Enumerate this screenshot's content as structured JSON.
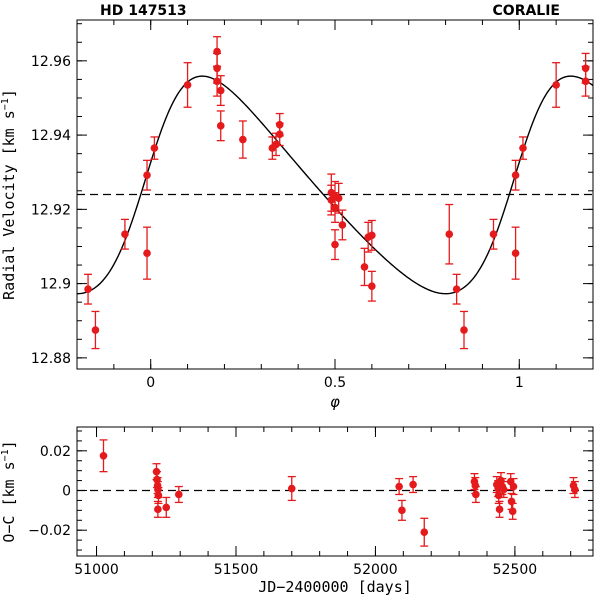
{
  "header": {
    "left": "HD 147513",
    "right": "CORALIE"
  },
  "chart_data": [
    {
      "type": "scatter",
      "xlabel": "φ",
      "ylabel_main": "Radial Velocity ",
      "ylabel_unit": "[km s",
      "ylabel_exp": "−1",
      "ylabel_close": "]",
      "xlim": [
        -0.2,
        1.2
      ],
      "ylim": [
        12.877,
        12.971
      ],
      "xticks": [
        {
          "v": 0,
          "label": "0"
        },
        {
          "v": 0.5,
          "label": "0.5"
        },
        {
          "v": 1,
          "label": "1"
        }
      ],
      "yticks": [
        {
          "v": 12.88,
          "label": "12.88"
        },
        {
          "v": 12.9,
          "label": "12.9"
        },
        {
          "v": 12.92,
          "label": "12.92"
        },
        {
          "v": 12.94,
          "label": "12.94"
        },
        {
          "v": 12.96,
          "label": "12.96"
        }
      ],
      "reference_line": 12.924,
      "model": {
        "gamma": 12.925,
        "K": 0.0293,
        "e": 0.26,
        "omega_deg": 282,
        "T0_phase": 0.0
      },
      "series": [
        {
          "points": [
            {
              "x": -0.17,
              "y": 12.8985,
              "err": 0.004
            },
            {
              "x": -0.15,
              "y": 12.8875,
              "err": 0.005
            },
            {
              "x": -0.07,
              "y": 12.9133,
              "err": 0.004
            },
            {
              "x": -0.01,
              "y": 12.9082,
              "err": 0.007
            },
            {
              "x": -0.01,
              "y": 12.9292,
              "err": 0.004
            },
            {
              "x": 0.01,
              "y": 12.9365,
              "err": 0.003
            },
            {
              "x": 0.1,
              "y": 12.9535,
              "err": 0.006
            },
            {
              "x": 0.18,
              "y": 12.9625,
              "err": 0.004
            },
            {
              "x": 0.18,
              "y": 12.958,
              "err": 0.004
            },
            {
              "x": 0.18,
              "y": 12.9545,
              "err": 0.004
            },
            {
              "x": 0.19,
              "y": 12.952,
              "err": 0.004
            },
            {
              "x": 0.19,
              "y": 12.9425,
              "err": 0.004
            },
            {
              "x": 0.25,
              "y": 12.9388,
              "err": 0.005
            },
            {
              "x": 0.33,
              "y": 12.9365,
              "err": 0.003
            },
            {
              "x": 0.34,
              "y": 12.9375,
              "err": 0.003
            },
            {
              "x": 0.35,
              "y": 12.9428,
              "err": 0.003
            },
            {
              "x": 0.35,
              "y": 12.9402,
              "err": 0.003
            },
            {
              "x": 0.49,
              "y": 12.9245,
              "err": 0.005
            },
            {
              "x": 0.49,
              "y": 12.9225,
              "err": 0.004
            },
            {
              "x": 0.5,
              "y": 12.9235,
              "err": 0.004
            },
            {
              "x": 0.5,
              "y": 12.9205,
              "err": 0.004
            },
            {
              "x": 0.5,
              "y": 12.9105,
              "err": 0.004
            },
            {
              "x": 0.51,
              "y": 12.923,
              "err": 0.004
            },
            {
              "x": 0.52,
              "y": 12.9158,
              "err": 0.004
            },
            {
              "x": 0.58,
              "y": 12.9045,
              "err": 0.005
            },
            {
              "x": 0.59,
              "y": 12.9125,
              "err": 0.004
            },
            {
              "x": 0.6,
              "y": 12.913,
              "err": 0.004
            },
            {
              "x": 0.6,
              "y": 12.8993,
              "err": 0.004
            },
            {
              "x": 0.81,
              "y": 12.9133,
              "err": 0.008
            },
            {
              "x": 0.83,
              "y": 12.8985,
              "err": 0.004
            },
            {
              "x": 0.85,
              "y": 12.8875,
              "err": 0.005
            },
            {
              "x": 0.93,
              "y": 12.9133,
              "err": 0.004
            },
            {
              "x": 0.99,
              "y": 12.9082,
              "err": 0.007
            },
            {
              "x": 0.99,
              "y": 12.9292,
              "err": 0.004
            },
            {
              "x": 1.01,
              "y": 12.9365,
              "err": 0.003
            },
            {
              "x": 1.1,
              "y": 12.9535,
              "err": 0.006
            },
            {
              "x": 1.18,
              "y": 12.958,
              "err": 0.004
            },
            {
              "x": 1.18,
              "y": 12.9545,
              "err": 0.004
            }
          ]
        }
      ]
    },
    {
      "type": "scatter",
      "xlabel": "JD−2400000 [days]",
      "ylabel_main": "O−C ",
      "ylabel_unit": "[km s",
      "ylabel_exp": "−1",
      "ylabel_close": "]",
      "xlim": [
        50930,
        52780
      ],
      "ylim": [
        -0.033,
        0.032
      ],
      "xticks": [
        {
          "v": 51000,
          "label": "51000"
        },
        {
          "v": 51500,
          "label": "51500"
        },
        {
          "v": 52000,
          "label": "52000"
        },
        {
          "v": 52500,
          "label": "52500"
        }
      ],
      "yticks": [
        {
          "v": -0.02,
          "label": "−0.02"
        },
        {
          "v": 0,
          "label": "0"
        },
        {
          "v": 0.02,
          "label": "0.02"
        }
      ],
      "reference_line": 0,
      "series": [
        {
          "points": [
            {
              "x": 51025,
              "y": 0.0175,
              "err": 0.008
            },
            {
              "x": 51215,
              "y": 0.0095,
              "err": 0.004
            },
            {
              "x": 51217,
              "y": 0.0055,
              "err": 0.004
            },
            {
              "x": 51219,
              "y": 0.0025,
              "err": 0.004
            },
            {
              "x": 51220,
              "y": 0.0005,
              "err": 0.004
            },
            {
              "x": 51222,
              "y": -0.0025,
              "err": 0.004
            },
            {
              "x": 51220,
              "y": -0.0095,
              "err": 0.004
            },
            {
              "x": 51250,
              "y": -0.0085,
              "err": 0.005
            },
            {
              "x": 51295,
              "y": -0.002,
              "err": 0.004
            },
            {
              "x": 51700,
              "y": 0.001,
              "err": 0.006
            },
            {
              "x": 52085,
              "y": 0.002,
              "err": 0.004
            },
            {
              "x": 52095,
              "y": -0.01,
              "err": 0.005
            },
            {
              "x": 52135,
              "y": 0.003,
              "err": 0.004
            },
            {
              "x": 52175,
              "y": -0.021,
              "err": 0.007
            },
            {
              "x": 52355,
              "y": 0.0045,
              "err": 0.004
            },
            {
              "x": 52358,
              "y": 0.0025,
              "err": 0.004
            },
            {
              "x": 52360,
              "y": -0.002,
              "err": 0.004
            },
            {
              "x": 52435,
              "y": 0.003,
              "err": 0.004
            },
            {
              "x": 52440,
              "y": 0.001,
              "err": 0.004
            },
            {
              "x": 52442,
              "y": -0.0025,
              "err": 0.004
            },
            {
              "x": 52445,
              "y": -0.0095,
              "err": 0.004
            },
            {
              "x": 52450,
              "y": 0.005,
              "err": 0.004
            },
            {
              "x": 52455,
              "y": 0.002,
              "err": 0.004
            },
            {
              "x": 52460,
              "y": 0.0005,
              "err": 0.004
            },
            {
              "x": 52485,
              "y": 0.0045,
              "err": 0.004
            },
            {
              "x": 52488,
              "y": -0.0055,
              "err": 0.004
            },
            {
              "x": 52492,
              "y": -0.0105,
              "err": 0.004
            },
            {
              "x": 52495,
              "y": 0.002,
              "err": 0.004
            },
            {
              "x": 52710,
              "y": 0.0025,
              "err": 0.004
            },
            {
              "x": 52715,
              "y": 0.0005,
              "err": 0.004
            }
          ]
        }
      ]
    }
  ],
  "colors": {
    "points": "#e41a1c",
    "model": "#000000",
    "reference": "#000000"
  }
}
